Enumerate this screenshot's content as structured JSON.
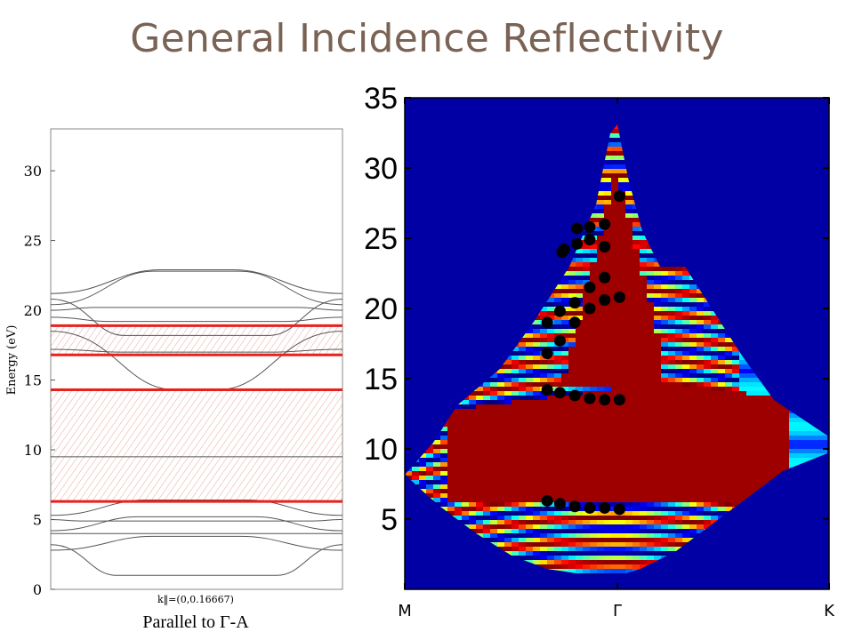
{
  "slide": {
    "title": "General Incidence Reflectivity"
  },
  "left_panel": {
    "ylabel": "Energy (eV)",
    "kpoint_label": "k‖=(0,0.16667)",
    "caption": "Parallel to Γ-A",
    "yticks": [
      0,
      5,
      10,
      15,
      20,
      25,
      30
    ],
    "ylim": [
      0,
      33
    ],
    "red_lines_eV": [
      6.3,
      14.3,
      16.8,
      18.9
    ],
    "gap_regions_eV": [
      [
        6.3,
        14.3
      ],
      [
        16.8,
        18.9
      ]
    ]
  },
  "chart_data": {
    "type": "heatmap",
    "title": "",
    "xlabel": "",
    "ylabel": "",
    "xticks": [
      "M",
      "Γ",
      "K"
    ],
    "yticks": [
      5,
      10,
      15,
      20,
      25,
      30,
      35
    ],
    "ylim": [
      0,
      35
    ],
    "colormap": "jet",
    "markers": [
      {
        "k": -0.33,
        "E": 6.3
      },
      {
        "k": -0.27,
        "E": 6.1
      },
      {
        "k": -0.2,
        "E": 5.9
      },
      {
        "k": -0.13,
        "E": 5.8
      },
      {
        "k": -0.06,
        "E": 5.8
      },
      {
        "k": 0.01,
        "E": 5.7
      },
      {
        "k": -0.33,
        "E": 14.2
      },
      {
        "k": -0.27,
        "E": 14.0
      },
      {
        "k": -0.2,
        "E": 13.8
      },
      {
        "k": -0.13,
        "E": 13.6
      },
      {
        "k": -0.06,
        "E": 13.5
      },
      {
        "k": 0.01,
        "E": 13.5
      },
      {
        "k": -0.33,
        "E": 16.8
      },
      {
        "k": -0.27,
        "E": 17.7
      },
      {
        "k": -0.2,
        "E": 19.0
      },
      {
        "k": -0.33,
        "E": 19.0
      },
      {
        "k": -0.27,
        "E": 19.8
      },
      {
        "k": -0.2,
        "E": 20.4
      },
      {
        "k": -0.13,
        "E": 20.0
      },
      {
        "k": -0.06,
        "E": 20.6
      },
      {
        "k": 0.01,
        "E": 20.8
      },
      {
        "k": -0.13,
        "E": 21.5
      },
      {
        "k": -0.06,
        "E": 22.2
      },
      {
        "k": -0.25,
        "E": 24.2
      },
      {
        "k": -0.19,
        "E": 24.6
      },
      {
        "k": -0.13,
        "E": 24.9
      },
      {
        "k": -0.06,
        "E": 24.4
      },
      {
        "k": -0.19,
        "E": 25.7
      },
      {
        "k": -0.13,
        "E": 25.8
      },
      {
        "k": -0.06,
        "E": 26.0
      },
      {
        "k": 0.01,
        "E": 28.0
      },
      {
        "k": -0.26,
        "E": 24.0
      }
    ]
  },
  "colors": {
    "title": "#7a6355",
    "red_line": "#e8211c",
    "heat_bg": "#0000a4"
  }
}
